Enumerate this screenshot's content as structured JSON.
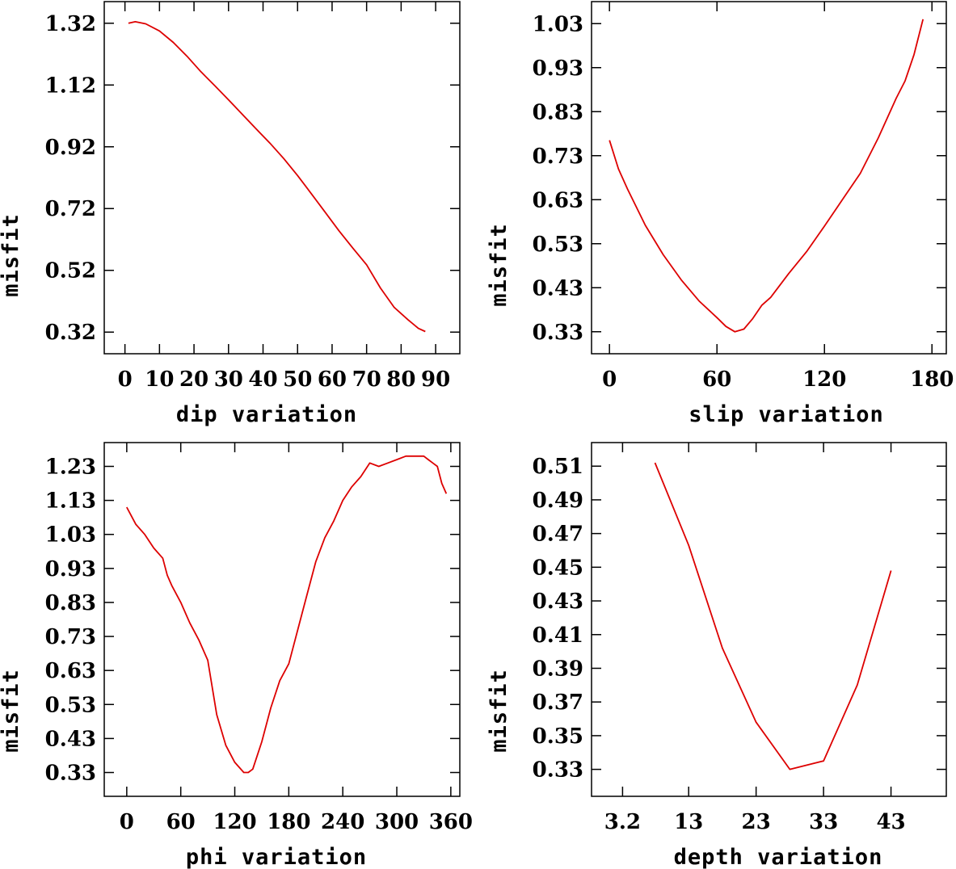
{
  "colors": {
    "curve": "#dd0000",
    "axis": "#000000",
    "background": "#ffffff"
  },
  "chart_data": [
    {
      "type": "line",
      "title": "",
      "xlabel": "dip    variation",
      "ylabel": "misfit",
      "x_ticks": [
        0,
        10,
        20,
        30,
        40,
        50,
        60,
        70,
        80,
        90
      ],
      "x_tick_labels": [
        "0",
        "10",
        "20",
        "30",
        "40",
        "50",
        "60",
        "70",
        "80",
        "90"
      ],
      "xlim": [
        -6,
        97
      ],
      "y_ticks": [
        0.32,
        0.52,
        0.72,
        0.92,
        1.12,
        1.32
      ],
      "y_tick_labels": [
        "0.32",
        "0.52",
        "0.72",
        "0.92",
        "1.12",
        "1.32"
      ],
      "ylim": [
        0.25,
        1.39
      ],
      "series": [
        {
          "name": "dip",
          "x": [
            1,
            3,
            6,
            10,
            14,
            18,
            22,
            26,
            30,
            34,
            38,
            42,
            46,
            50,
            54,
            58,
            62,
            66,
            70,
            74,
            78,
            82,
            85,
            87
          ],
          "y": [
            1.32,
            1.325,
            1.318,
            1.295,
            1.258,
            1.213,
            1.163,
            1.118,
            1.072,
            1.025,
            0.978,
            0.932,
            0.882,
            0.827,
            0.768,
            0.708,
            0.648,
            0.592,
            0.538,
            0.463,
            0.4,
            0.36,
            0.332,
            0.322
          ]
        }
      ]
    },
    {
      "type": "line",
      "title": "",
      "xlabel": "slip   variation",
      "ylabel": "misfit",
      "x_ticks": [
        0,
        60,
        120,
        180
      ],
      "x_tick_labels": [
        "0",
        "60",
        "120",
        "180"
      ],
      "xlim": [
        -10,
        188
      ],
      "y_ticks": [
        0.33,
        0.43,
        0.53,
        0.63,
        0.73,
        0.83,
        0.93,
        1.03
      ],
      "y_tick_labels": [
        "0.33",
        "0.43",
        "0.53",
        "0.63",
        "0.73",
        "0.83",
        "0.93",
        "1.03"
      ],
      "ylim": [
        0.28,
        1.08
      ],
      "series": [
        {
          "name": "slip",
          "x": [
            0,
            5,
            10,
            20,
            30,
            40,
            50,
            60,
            65,
            70,
            75,
            80,
            85,
            90,
            100,
            110,
            120,
            130,
            140,
            150,
            160,
            165,
            170,
            175
          ],
          "y": [
            0.765,
            0.7,
            0.655,
            0.572,
            0.505,
            0.448,
            0.4,
            0.362,
            0.342,
            0.33,
            0.336,
            0.36,
            0.39,
            0.408,
            0.462,
            0.512,
            0.57,
            0.63,
            0.69,
            0.77,
            0.86,
            0.9,
            0.96,
            1.04
          ]
        }
      ]
    },
    {
      "type": "line",
      "title": "",
      "xlabel": "phi    variation",
      "ylabel": "misfit",
      "x_ticks": [
        0,
        60,
        120,
        180,
        240,
        300,
        360
      ],
      "x_tick_labels": [
        "0",
        "60",
        "120",
        "180",
        "240",
        "300",
        "360"
      ],
      "xlim": [
        -25,
        370
      ],
      "y_ticks": [
        0.33,
        0.43,
        0.53,
        0.63,
        0.73,
        0.83,
        0.93,
        1.03,
        1.13,
        1.23
      ],
      "y_tick_labels": [
        "0.33",
        "0.43",
        "0.53",
        "0.63",
        "0.73",
        "0.83",
        "0.93",
        "1.03",
        "1.13",
        "1.23"
      ],
      "ylim": [
        0.26,
        1.3
      ],
      "series": [
        {
          "name": "phi",
          "x": [
            0,
            10,
            20,
            30,
            40,
            45,
            50,
            60,
            70,
            80,
            90,
            100,
            110,
            120,
            130,
            135,
            140,
            150,
            160,
            170,
            180,
            190,
            200,
            210,
            220,
            230,
            240,
            250,
            260,
            270,
            280,
            290,
            300,
            310,
            320,
            330,
            335,
            340,
            345,
            350,
            355
          ],
          "y": [
            1.11,
            1.06,
            1.03,
            0.99,
            0.96,
            0.91,
            0.88,
            0.83,
            0.77,
            0.72,
            0.66,
            0.5,
            0.41,
            0.36,
            0.33,
            0.33,
            0.34,
            0.42,
            0.52,
            0.6,
            0.65,
            0.75,
            0.85,
            0.95,
            1.02,
            1.07,
            1.13,
            1.17,
            1.2,
            1.24,
            1.23,
            1.24,
            1.25,
            1.26,
            1.26,
            1.26,
            1.25,
            1.24,
            1.23,
            1.18,
            1.15
          ]
        }
      ]
    },
    {
      "type": "line",
      "title": "",
      "xlabel": "depth  variation",
      "ylabel": "misfit",
      "x_ticks": [
        3.2,
        13,
        23,
        33,
        43
      ],
      "x_tick_labels": [
        "3.2",
        "13",
        "23",
        "33",
        "43"
      ],
      "xlim": [
        -1.4,
        51.2
      ],
      "y_ticks": [
        0.33,
        0.35,
        0.37,
        0.39,
        0.41,
        0.43,
        0.45,
        0.47,
        0.49,
        0.51
      ],
      "y_tick_labels": [
        "0.33",
        "0.35",
        "0.37",
        "0.39",
        "0.41",
        "0.43",
        "0.45",
        "0.47",
        "0.49",
        "0.51"
      ],
      "ylim": [
        0.314,
        0.524
      ],
      "series": [
        {
          "name": "depth",
          "x": [
            8,
            13,
            18,
            23,
            28,
            33,
            38,
            43
          ],
          "y": [
            0.512,
            0.463,
            0.402,
            0.358,
            0.33,
            0.335,
            0.38,
            0.448
          ]
        }
      ]
    }
  ]
}
